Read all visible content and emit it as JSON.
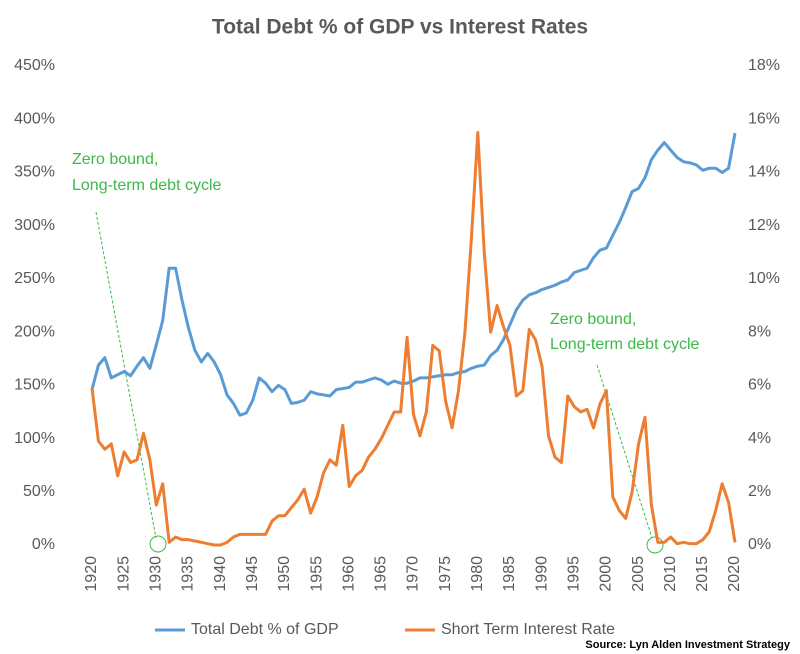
{
  "chart_data": {
    "type": "line",
    "title": "Total Debt % of GDP vs Interest Rates",
    "x": [
      1920,
      1921,
      1922,
      1923,
      1924,
      1925,
      1926,
      1927,
      1928,
      1929,
      1930,
      1931,
      1932,
      1933,
      1934,
      1935,
      1936,
      1937,
      1938,
      1939,
      1940,
      1941,
      1942,
      1943,
      1944,
      1945,
      1946,
      1947,
      1948,
      1949,
      1950,
      1951,
      1952,
      1953,
      1954,
      1955,
      1956,
      1957,
      1958,
      1959,
      1960,
      1961,
      1962,
      1963,
      1964,
      1965,
      1966,
      1967,
      1968,
      1969,
      1970,
      1971,
      1972,
      1973,
      1974,
      1975,
      1976,
      1977,
      1978,
      1979,
      1980,
      1981,
      1982,
      1983,
      1984,
      1985,
      1986,
      1987,
      1988,
      1989,
      1990,
      1991,
      1992,
      1993,
      1994,
      1995,
      1996,
      1997,
      1998,
      1999,
      2000,
      2001,
      2002,
      2003,
      2004,
      2005,
      2006,
      2007,
      2008,
      2009,
      2010,
      2011,
      2012,
      2013,
      2014,
      2015,
      2016,
      2017,
      2018,
      2019,
      2020
    ],
    "series": [
      {
        "name": "Total Debt % of GDP",
        "color": "#5b9bd5",
        "axis": "y",
        "values": [
          146,
          169,
          176,
          157,
          160,
          163,
          159,
          168,
          176,
          166,
          188,
          211,
          260,
          260,
          230,
          204,
          183,
          172,
          180,
          172,
          160,
          141,
          133,
          122,
          124,
          136,
          157,
          152,
          144,
          150,
          146,
          133,
          134,
          136,
          144,
          142,
          141,
          140,
          146,
          147,
          148,
          153,
          153,
          155,
          157,
          155,
          151,
          154,
          152,
          152,
          154,
          157,
          157,
          158,
          159,
          160,
          160,
          162,
          163,
          166,
          168,
          169,
          178,
          183,
          193,
          207,
          221,
          230,
          235,
          237,
          240,
          242,
          244,
          247,
          249,
          256,
          258,
          260,
          270,
          277,
          279,
          291,
          303,
          317,
          332,
          335,
          345,
          362,
          371,
          378,
          371,
          364,
          360,
          359,
          357,
          352,
          354,
          354,
          350,
          354,
          387
        ]
      },
      {
        "name": "Short Term Interest Rate",
        "color": "#ed7d31",
        "axis": "y2",
        "values": [
          5.9,
          3.9,
          3.6,
          3.8,
          2.6,
          3.5,
          3.1,
          3.2,
          4.2,
          3.2,
          1.5,
          2.3,
          0.1,
          0.3,
          0.2,
          0.2,
          0.15,
          0.1,
          0.05,
          0,
          0,
          0.1,
          0.3,
          0.4,
          0.4,
          0.4,
          0.4,
          0.4,
          0.9,
          1.1,
          1.1,
          1.4,
          1.7,
          2.1,
          1.2,
          1.8,
          2.7,
          3.2,
          3.0,
          4.5,
          2.2,
          2.6,
          2.8,
          3.3,
          3.6,
          4.0,
          4.5,
          5.0,
          5.0,
          7.8,
          4.9,
          4.1,
          5.0,
          7.5,
          7.3,
          5.4,
          4.4,
          5.8,
          8.0,
          11.5,
          15.5,
          11.0,
          8.0,
          9.0,
          8.2,
          7.5,
          5.6,
          5.8,
          8.1,
          7.7,
          6.7,
          4.1,
          3.3,
          3.1,
          5.6,
          5.2,
          5.0,
          5.1,
          4.4,
          5.3,
          5.8,
          1.8,
          1.3,
          1.0,
          2.0,
          3.8,
          4.8,
          1.5,
          0.1,
          0.1,
          0.3,
          0.05,
          0.1,
          0.05,
          0.05,
          0.2,
          0.5,
          1.3,
          2.3,
          1.6,
          0.1
        ]
      }
    ],
    "xlim": [
      1920,
      2020
    ],
    "xticks": [
      1920,
      1925,
      1930,
      1935,
      1940,
      1945,
      1950,
      1955,
      1960,
      1965,
      1970,
      1975,
      1980,
      1985,
      1990,
      1995,
      2000,
      2005,
      2010,
      2015,
      2020
    ],
    "ylim": [
      0,
      450
    ],
    "yticks": [
      {
        "value": 0,
        "label": "0%"
      },
      {
        "value": 50,
        "label": "50%"
      },
      {
        "value": 100,
        "label": "100%"
      },
      {
        "value": 150,
        "label": "150%"
      },
      {
        "value": 200,
        "label": "200%"
      },
      {
        "value": 250,
        "label": "250%"
      },
      {
        "value": 300,
        "label": "300%"
      },
      {
        "value": 350,
        "label": "350%"
      },
      {
        "value": 400,
        "label": "400%"
      },
      {
        "value": 450,
        "label": "450%"
      }
    ],
    "y2lim": [
      0,
      18
    ],
    "y2ticks": [
      {
        "value": 0,
        "label": "0%"
      },
      {
        "value": 2,
        "label": "2%"
      },
      {
        "value": 4,
        "label": "4%"
      },
      {
        "value": 6,
        "label": "6%"
      },
      {
        "value": 8,
        "label": "8%"
      },
      {
        "value": 10,
        "label": "10%"
      },
      {
        "value": 12,
        "label": "12%"
      },
      {
        "value": 14,
        "label": "14%"
      },
      {
        "value": 16,
        "label": "16%"
      },
      {
        "value": 18,
        "label": "18%"
      }
    ],
    "grid": false,
    "legend": "bottom",
    "annotations": [
      {
        "lines": [
          "Zero bound,",
          "Long-term debt cycle"
        ]
      },
      {
        "lines": [
          "Zero bound,",
          "Long-term debt cycle"
        ]
      }
    ],
    "source": "Source: Lyn Alden Investment Strategy"
  }
}
